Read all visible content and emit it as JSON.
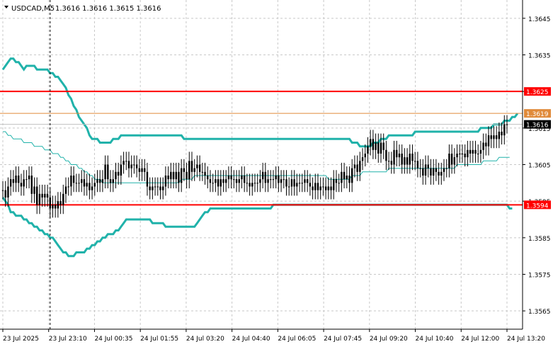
{
  "header": {
    "symbol_text": "USDCAD,M5",
    "ohlc_text": "1.3616 1.3616 1.3615 1.3616",
    "triangle_icon": "triangle-down-icon"
  },
  "colors": {
    "background": "#ffffff",
    "grid": "#c8c8c8",
    "axis": "#000000",
    "candle": "#000000",
    "bollinger": "#20b2aa",
    "level_red": "#ff0000",
    "level_orange": "#e08a3a",
    "price_tag_dark": "#000000"
  },
  "chart_data": {
    "type": "candlestick",
    "symbol": "USDCAD",
    "timeframe": "M5",
    "ylim": [
      1.356,
      1.365
    ],
    "y_ticks": [
      1.3565,
      1.3575,
      1.3585,
      1.3595,
      1.3605,
      1.3615,
      1.3625,
      1.3635,
      1.3645
    ],
    "y_tick_labels": [
      "1.3565",
      "1.3575",
      "1.3585",
      "1.3595",
      "1.3605",
      "1.3615",
      "1.3625",
      "1.3635",
      "1.3645"
    ],
    "x_ticks": [
      "23 Jul 2025",
      "23 Jul 23:10",
      "24 Jul 00:35",
      "24 Jul 01:55",
      "24 Jul 03:20",
      "24 Jul 04:40",
      "24 Jul 06:05",
      "24 Jul 07:45",
      "24 Jul 09:20",
      "24 Jul 10:40",
      "24 Jul 12:00",
      "24 Jul 13:20"
    ],
    "current_price": 1.3616,
    "current_price_label": "1.3616",
    "levels": [
      {
        "price": 1.3625,
        "label": "1.3625",
        "color": "#ff0000",
        "width": 2,
        "tag": "red"
      },
      {
        "price": 1.3619,
        "label": "1.3619",
        "color": "#e08a3a",
        "width": 1,
        "tag": "orange"
      },
      {
        "price": 1.3594,
        "label": "1.3594",
        "color": "#ff0000",
        "width": 2,
        "tag": "red"
      }
    ],
    "vertical_marker_index": 18,
    "close": [
      1.3598,
      1.3596,
      1.3599,
      1.3601,
      1.36,
      1.3602,
      1.36,
      1.3599,
      1.3601,
      1.3601,
      1.3602,
      1.3597,
      1.3599,
      1.3594,
      1.3597,
      1.3596,
      1.3597,
      1.3596,
      1.3593,
      1.3594,
      1.3593,
      1.3595,
      1.3594,
      1.3597,
      1.3599,
      1.3599,
      1.3602,
      1.36,
      1.36,
      1.36,
      1.3601,
      1.3599,
      1.36,
      1.3598,
      1.3599,
      1.36,
      1.3601,
      1.36,
      1.3601,
      1.3605,
      1.3601,
      1.36,
      1.3601,
      1.3603,
      1.3602,
      1.3605,
      1.3606,
      1.3606,
      1.3604,
      1.3605,
      1.3605,
      1.3604,
      1.3603,
      1.3604,
      1.3603,
      1.3599,
      1.3598,
      1.3599,
      1.3599,
      1.3599,
      1.3598,
      1.3599,
      1.3602,
      1.3601,
      1.3603,
      1.3601,
      1.3603,
      1.36,
      1.3604,
      1.3603,
      1.3601,
      1.3606,
      1.3603,
      1.3604,
      1.3605,
      1.3603,
      1.3603,
      1.3602,
      1.3601,
      1.36,
      1.36,
      1.3601,
      1.3599,
      1.3601,
      1.36,
      1.3601,
      1.3602,
      1.3601,
      1.3601,
      1.36,
      1.3601,
      1.3602,
      1.36,
      1.36,
      1.3599,
      1.36,
      1.36,
      1.36,
      1.3601,
      1.3603,
      1.36,
      1.3601,
      1.3601,
      1.3601,
      1.3602,
      1.36,
      1.3601,
      1.3601,
      1.3599,
      1.3599,
      1.3601,
      1.3599,
      1.36,
      1.36,
      1.36,
      1.3601,
      1.36,
      1.3599,
      1.3598,
      1.36,
      1.3598,
      1.3599,
      1.3599,
      1.3598,
      1.3599,
      1.3598,
      1.3601,
      1.36,
      1.36,
      1.3603,
      1.3601,
      1.3602,
      1.36,
      1.3604,
      1.3605,
      1.3603,
      1.3606,
      1.3607,
      1.3608,
      1.361,
      1.3612,
      1.3609,
      1.3611,
      1.3608,
      1.3611,
      1.3609,
      1.3606,
      1.3606,
      1.3605,
      1.3609,
      1.3607,
      1.3608,
      1.3605,
      1.3607,
      1.3605,
      1.3608,
      1.3606,
      1.3606,
      1.3604,
      1.3604,
      1.3602,
      1.3605,
      1.3604,
      1.3602,
      1.3604,
      1.3603,
      1.3602,
      1.3603,
      1.3604,
      1.3604,
      1.3608,
      1.3605,
      1.3607,
      1.3608,
      1.3608,
      1.3608,
      1.3607,
      1.3609,
      1.3608,
      1.3609,
      1.3608,
      1.3608,
      1.3609,
      1.3611,
      1.361,
      1.3613,
      1.3612,
      1.3613,
      1.3612,
      1.3614,
      1.3613,
      1.3616,
      1.3616
    ],
    "bollinger_upper": [
      1.3631,
      1.3632,
      1.3633,
      1.3634,
      1.3634,
      1.3633,
      1.3633,
      1.3632,
      1.3631,
      1.3632,
      1.3632,
      1.3632,
      1.3632,
      1.3631,
      1.3631,
      1.3631,
      1.3631,
      1.3631,
      1.363,
      1.363,
      1.3629,
      1.3629,
      1.3628,
      1.3627,
      1.3626,
      1.3624,
      1.3623,
      1.3621,
      1.362,
      1.3618,
      1.3617,
      1.3616,
      1.3615,
      1.3613,
      1.3612,
      1.3612,
      1.3612,
      1.3611,
      1.3611,
      1.3611,
      1.3611,
      1.3611,
      1.3612,
      1.3612,
      1.3612,
      1.3613,
      1.3613,
      1.3613,
      1.3613,
      1.3613,
      1.3613,
      1.3613,
      1.3613,
      1.3613,
      1.3613,
      1.3613,
      1.3613,
      1.3613,
      1.3613,
      1.3613,
      1.3613,
      1.3613,
      1.3613,
      1.3613,
      1.3613,
      1.3613,
      1.3613,
      1.3613,
      1.3613,
      1.3612,
      1.3612,
      1.3612,
      1.3612,
      1.3612,
      1.3612,
      1.3612,
      1.3612,
      1.3612,
      1.3612,
      1.3612,
      1.3612,
      1.3612,
      1.3612,
      1.3612,
      1.3612,
      1.3612,
      1.3612,
      1.3612,
      1.3612,
      1.3612,
      1.3612,
      1.3612,
      1.3612,
      1.3612,
      1.3612,
      1.3612,
      1.3612,
      1.3612,
      1.3612,
      1.3612,
      1.3612,
      1.3612,
      1.3612,
      1.3612,
      1.3612,
      1.3612,
      1.3612,
      1.3612,
      1.3612,
      1.3612,
      1.3612,
      1.3612,
      1.3612,
      1.3612,
      1.3612,
      1.3612,
      1.3612,
      1.3612,
      1.3612,
      1.3612,
      1.3612,
      1.3612,
      1.3612,
      1.3612,
      1.3612,
      1.3612,
      1.3612,
      1.3612,
      1.3612,
      1.3612,
      1.3612,
      1.3612,
      1.3612,
      1.3611,
      1.3611,
      1.3611,
      1.361,
      1.361,
      1.361,
      1.361,
      1.361,
      1.3611,
      1.3611,
      1.3611,
      1.3612,
      1.3612,
      1.3612,
      1.3613,
      1.3613,
      1.3613,
      1.3613,
      1.3613,
      1.3613,
      1.3613,
      1.3613,
      1.3613,
      1.3613,
      1.3614,
      1.3614,
      1.3614,
      1.3614,
      1.3614,
      1.3614,
      1.3614,
      1.3614,
      1.3614,
      1.3614,
      1.3614,
      1.3614,
      1.3614,
      1.3614,
      1.3614,
      1.3614,
      1.3614,
      1.3614,
      1.3614,
      1.3614,
      1.3614,
      1.3614,
      1.3614,
      1.3614,
      1.3614,
      1.3615,
      1.3615,
      1.3615,
      1.3615,
      1.3615,
      1.3616,
      1.3616,
      1.3616,
      1.3616,
      1.3617,
      1.3617,
      1.3617,
      1.3618,
      1.3618,
      1.3619
    ],
    "bollinger_middle": [
      1.3614,
      1.3614,
      1.3613,
      1.3613,
      1.3612,
      1.3612,
      1.3612,
      1.3612,
      1.3611,
      1.3611,
      1.3611,
      1.3611,
      1.361,
      1.361,
      1.361,
      1.361,
      1.3609,
      1.3609,
      1.3609,
      1.3608,
      1.3608,
      1.3608,
      1.3607,
      1.3607,
      1.3606,
      1.3606,
      1.3605,
      1.3605,
      1.3605,
      1.3604,
      1.3604,
      1.3603,
      1.3603,
      1.3602,
      1.3602,
      1.3601,
      1.3601,
      1.3601,
      1.36,
      1.36,
      1.36,
      1.36,
      1.36,
      1.36,
      1.36,
      1.36,
      1.36,
      1.36,
      1.36,
      1.36,
      1.36,
      1.36,
      1.36,
      1.36,
      1.36,
      1.36,
      1.36,
      1.36,
      1.36,
      1.36,
      1.36,
      1.36,
      1.36,
      1.36,
      1.36,
      1.36,
      1.36,
      1.36,
      1.3601,
      1.3601,
      1.3601,
      1.3601,
      1.3601,
      1.3602,
      1.3602,
      1.3602,
      1.3602,
      1.3602,
      1.3602,
      1.3602,
      1.3602,
      1.3602,
      1.3602,
      1.3602,
      1.3602,
      1.3602,
      1.3602,
      1.3602,
      1.3602,
      1.3602,
      1.3602,
      1.3602,
      1.3602,
      1.3602,
      1.3602,
      1.3602,
      1.3602,
      1.3602,
      1.3602,
      1.3602,
      1.3602,
      1.3602,
      1.3602,
      1.3602,
      1.3602,
      1.3602,
      1.3602,
      1.3602,
      1.3602,
      1.3602,
      1.3602,
      1.3602,
      1.3602,
      1.3602,
      1.3602,
      1.3602,
      1.3602,
      1.3602,
      1.3602,
      1.3602,
      1.3602,
      1.3602,
      1.3602,
      1.3602,
      1.3601,
      1.3601,
      1.3601,
      1.3601,
      1.3601,
      1.3601,
      1.3601,
      1.3601,
      1.3601,
      1.3602,
      1.3602,
      1.3602,
      1.3602,
      1.3603,
      1.3603,
      1.3603,
      1.3603,
      1.3603,
      1.3603,
      1.3603,
      1.3603,
      1.3603,
      1.3603,
      1.3604,
      1.3604,
      1.3604,
      1.3604,
      1.3604,
      1.3604,
      1.3604,
      1.3604,
      1.3604,
      1.3604,
      1.3604,
      1.3604,
      1.3604,
      1.3604,
      1.3604,
      1.3604,
      1.3604,
      1.3604,
      1.3604,
      1.3604,
      1.3604,
      1.3604,
      1.3604,
      1.3604,
      1.3604,
      1.3604,
      1.3605,
      1.3605,
      1.3605,
      1.3605,
      1.3605,
      1.3605,
      1.3605,
      1.3605,
      1.3605,
      1.3605,
      1.3606,
      1.3606,
      1.3606,
      1.3606,
      1.3606,
      1.3606,
      1.3607,
      1.3607,
      1.3607,
      1.3607,
      1.3607
    ],
    "bollinger_lower": [
      1.3596,
      1.3595,
      1.3594,
      1.3592,
      1.3592,
      1.3591,
      1.3591,
      1.3591,
      1.359,
      1.359,
      1.3589,
      1.3589,
      1.3588,
      1.3588,
      1.3587,
      1.3587,
      1.3586,
      1.3586,
      1.3585,
      1.3585,
      1.3584,
      1.3583,
      1.3582,
      1.3581,
      1.3581,
      1.358,
      1.358,
      1.358,
      1.3581,
      1.3581,
      1.3581,
      1.3581,
      1.3582,
      1.3582,
      1.3583,
      1.3583,
      1.3584,
      1.3584,
      1.3585,
      1.3585,
      1.3586,
      1.3586,
      1.3586,
      1.3587,
      1.3587,
      1.3588,
      1.3589,
      1.359,
      1.359,
      1.359,
      1.359,
      1.359,
      1.359,
      1.359,
      1.359,
      1.359,
      1.359,
      1.3589,
      1.3589,
      1.3589,
      1.3589,
      1.3589,
      1.3588,
      1.3588,
      1.3588,
      1.3588,
      1.3588,
      1.3588,
      1.3588,
      1.3588,
      1.3588,
      1.3588,
      1.3588,
      1.3588,
      1.3589,
      1.359,
      1.3591,
      1.3592,
      1.3592,
      1.3593,
      1.3593,
      1.3593,
      1.3593,
      1.3593,
      1.3593,
      1.3593,
      1.3593,
      1.3593,
      1.3593,
      1.3593,
      1.3593,
      1.3593,
      1.3593,
      1.3593,
      1.3593,
      1.3593,
      1.3593,
      1.3593,
      1.3593,
      1.3593,
      1.3593,
      1.3593,
      1.3593,
      1.3594,
      1.3594,
      1.3594,
      1.3594,
      1.3594,
      1.3594,
      1.3594,
      1.3594,
      1.3594,
      1.3594,
      1.3594,
      1.3594,
      1.3594,
      1.3594,
      1.3594,
      1.3594,
      1.3594,
      1.3594,
      1.3594,
      1.3594,
      1.3594,
      1.3594,
      1.3594,
      1.3594,
      1.3594,
      1.3594,
      1.3594,
      1.3594,
      1.3594,
      1.3594,
      1.3594,
      1.3594,
      1.3594,
      1.3594,
      1.3594,
      1.3594,
      1.3594,
      1.3594,
      1.3594,
      1.3594,
      1.3594,
      1.3594,
      1.3594,
      1.3594,
      1.3594,
      1.3594,
      1.3594,
      1.3594,
      1.3594,
      1.3594,
      1.3594,
      1.3594,
      1.3594,
      1.3594,
      1.3594,
      1.3594,
      1.3594,
      1.3594,
      1.3594,
      1.3594,
      1.3594,
      1.3594,
      1.3594,
      1.3594,
      1.3594,
      1.3594,
      1.3594,
      1.3594,
      1.3594,
      1.3594,
      1.3594,
      1.3594,
      1.3594,
      1.3594,
      1.3594,
      1.3594,
      1.3594,
      1.3594,
      1.3594,
      1.3594,
      1.3594,
      1.3594,
      1.3594,
      1.3594,
      1.3594,
      1.3594,
      1.3594,
      1.3594,
      1.3594,
      1.3594,
      1.3593,
      1.3593
    ]
  }
}
